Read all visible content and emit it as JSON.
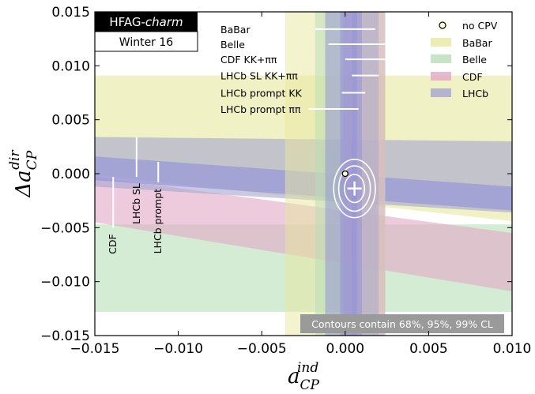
{
  "chart_data": {
    "type": "area",
    "xlabel": "a",
    "xlabel_sub": "CP",
    "xlabel_sup": "ind",
    "ylabel": "Δa",
    "ylabel_sub": "CP",
    "ylabel_sup": "dir",
    "xlim": [
      -0.015,
      0.01
    ],
    "ylim": [
      -0.015,
      0.015
    ],
    "xticks": [
      "−0.015",
      "−0.010",
      "−0.005",
      "0.000",
      "0.005",
      "0.010"
    ],
    "yticks": [
      "0.015",
      "0.010",
      "0.005",
      "0.000",
      "−0.005",
      "−0.010",
      "−0.015"
    ],
    "xtick_values": [
      -0.015,
      -0.01,
      -0.005,
      0.0,
      0.005,
      0.01
    ],
    "ytick_values": [
      0.015,
      0.01,
      0.005,
      0.0,
      -0.005,
      -0.01,
      -0.015
    ],
    "grid": false,
    "legend_position": "top-right",
    "logo": {
      "title": "HFAG-",
      "title_italic": "charm",
      "subtitle": "Winter 16"
    },
    "legend": [
      {
        "label": "no CPV",
        "marker": "circle"
      },
      {
        "label": "BaBar",
        "color": "#e8e8a0"
      },
      {
        "label": "Belle",
        "color": "#b8ddb8"
      },
      {
        "label": "CDF",
        "color": "#e3a8c5"
      },
      {
        "label": "LHCb",
        "color": "#a5a5d0"
      }
    ],
    "vertical_bands": [
      {
        "name": "BaBar",
        "color": "#e8e8a0",
        "xmin": -0.0036,
        "xmax": 0.0024
      },
      {
        "name": "Belle",
        "color": "#b8ddb8",
        "xmin": -0.0018,
        "xmax": 0.0024
      },
      {
        "name": "CDF",
        "color": "#e3a8c5",
        "xmin": -0.0001,
        "xmax": 0.0024
      },
      {
        "name": "LHCb SL KK+ππ",
        "color": "#a5a5d0",
        "xmin": 0.0004,
        "xmax": 0.002
      },
      {
        "name": "LHCb prompt KK",
        "color": "#9090d8",
        "xmin": -0.0003,
        "xmax": 0.001
      },
      {
        "name": "LHCb prompt ππ",
        "color": "#9090d8",
        "xmin": -0.0012,
        "xmax": 0.0007
      }
    ],
    "diagonal_bands": [
      {
        "name": "BaBar",
        "color": "#e8e8a0",
        "x0": -0.015,
        "x1": 0.01,
        "upper": [
          0.0091,
          0.0091
        ],
        "lower": [
          -0.0001,
          -0.0044
        ]
      },
      {
        "name": "Belle",
        "color": "#b8ddb8",
        "x0": -0.015,
        "x1": 0.01,
        "upper": [
          -0.0047,
          -0.0047
        ],
        "lower": [
          -0.0128,
          -0.0128
        ]
      },
      {
        "name": "CDF",
        "color": "#e3a8c5",
        "x0": -0.015,
        "x1": 0.01,
        "upper": [
          -0.0003,
          -0.0055
        ],
        "lower": [
          -0.0045,
          -0.0109
        ]
      },
      {
        "name": "LHCb",
        "color": "#a5a5d0",
        "x0": -0.015,
        "x1": 0.01,
        "upper": [
          0.0034,
          0.003
        ],
        "lower": [
          -0.0012,
          -0.0036
        ]
      },
      {
        "name": "LHCb",
        "color": "#9090d8",
        "x0": -0.015,
        "x1": 0.01,
        "upper": [
          0.0016,
          -0.0012
        ],
        "lower": [
          -0.0006,
          -0.0034
        ]
      }
    ],
    "measurement_labels": [
      {
        "label": "BaBar",
        "center": 0.0,
        "half_width": 0.0018,
        "y": 0.0134
      },
      {
        "label": "Belle",
        "center": 0.001,
        "half_width": 0.002,
        "y": 0.012
      },
      {
        "label": "CDF KK+ππ",
        "center": 0.0019,
        "half_width": 0.0019,
        "y": 0.0106
      },
      {
        "label": "LHCb SL KK+ππ",
        "center": 0.0012,
        "half_width": 0.0008,
        "y": 0.0091
      },
      {
        "label": "LHCb prompt KK",
        "center": 0.0005,
        "half_width": 0.0007,
        "y": 0.0075
      },
      {
        "label": "LHCb prompt ππ",
        "center": -0.0007,
        "half_width": 0.0015,
        "y": 0.006
      }
    ],
    "dir_labels": [
      {
        "label": "CDF",
        "x": -0.0139,
        "y_top": -0.0003,
        "y_bottom": -0.005
      },
      {
        "label": "LHCb SL",
        "x": -0.0125,
        "y_top": 0.0034,
        "y_bottom": -0.0003
      },
      {
        "label": "LHCb prompt",
        "x": -0.0112,
        "y_top": 0.0011,
        "y_bottom": -0.0008
      }
    ],
    "no_cpv_point": {
      "x": 0.0,
      "y": 0.0
    },
    "best_fit": {
      "x": 0.00056,
      "y": -0.00137
    },
    "contours": [
      {
        "cl": "68%",
        "rx": 0.0006,
        "ry": 0.0013
      },
      {
        "cl": "95%",
        "rx": 0.00095,
        "ry": 0.0021
      },
      {
        "cl": "99%",
        "rx": 0.00125,
        "ry": 0.0027
      }
    ],
    "annotation": "Contours contain 68%, 95%, 99% CL"
  }
}
